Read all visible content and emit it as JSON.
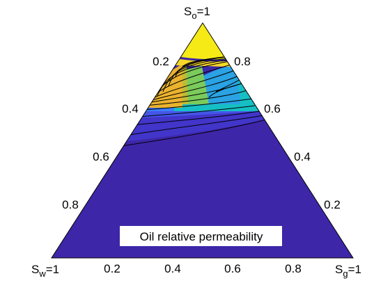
{
  "chart_data": {
    "type": "ternary-contour",
    "title": "Oil relative permeability",
    "vertices": {
      "top": {
        "main": "S",
        "sub": "o",
        "suffix": "=1"
      },
      "left": {
        "main": "S",
        "sub": "w",
        "suffix": "=1"
      },
      "right": {
        "main": "S",
        "sub": "g",
        "suffix": "=1"
      }
    },
    "axes": {
      "bottom_ticks": [
        "0.2",
        "0.4",
        "0.6",
        "0.8"
      ],
      "left_ticks": [
        "0.2",
        "0.4",
        "0.6",
        "0.8"
      ],
      "right_ticks": [
        "0.8",
        "0.6",
        "0.4",
        "0.2"
      ]
    },
    "colors": {
      "min": "#3e26a8",
      "levels": [
        "#3e26a8",
        "#4235c9",
        "#4456e7",
        "#3c7df8",
        "#2aa2e3",
        "#16bfc3",
        "#2fce9a",
        "#7acb5c",
        "#bdbc35",
        "#eab22e",
        "#f6d628",
        "#f5ea16"
      ],
      "max": "#f2ea1a",
      "contour_line": "#000000"
    },
    "contour_levels": [
      0.01,
      0.02,
      0.03,
      0.05,
      0.1,
      0.15,
      0.2,
      0.25,
      0.3,
      0.35,
      0.4,
      0.45,
      0.5,
      0.55,
      0.6,
      0.65,
      0.7,
      0.75,
      0.8,
      0.85,
      0.9
    ]
  }
}
